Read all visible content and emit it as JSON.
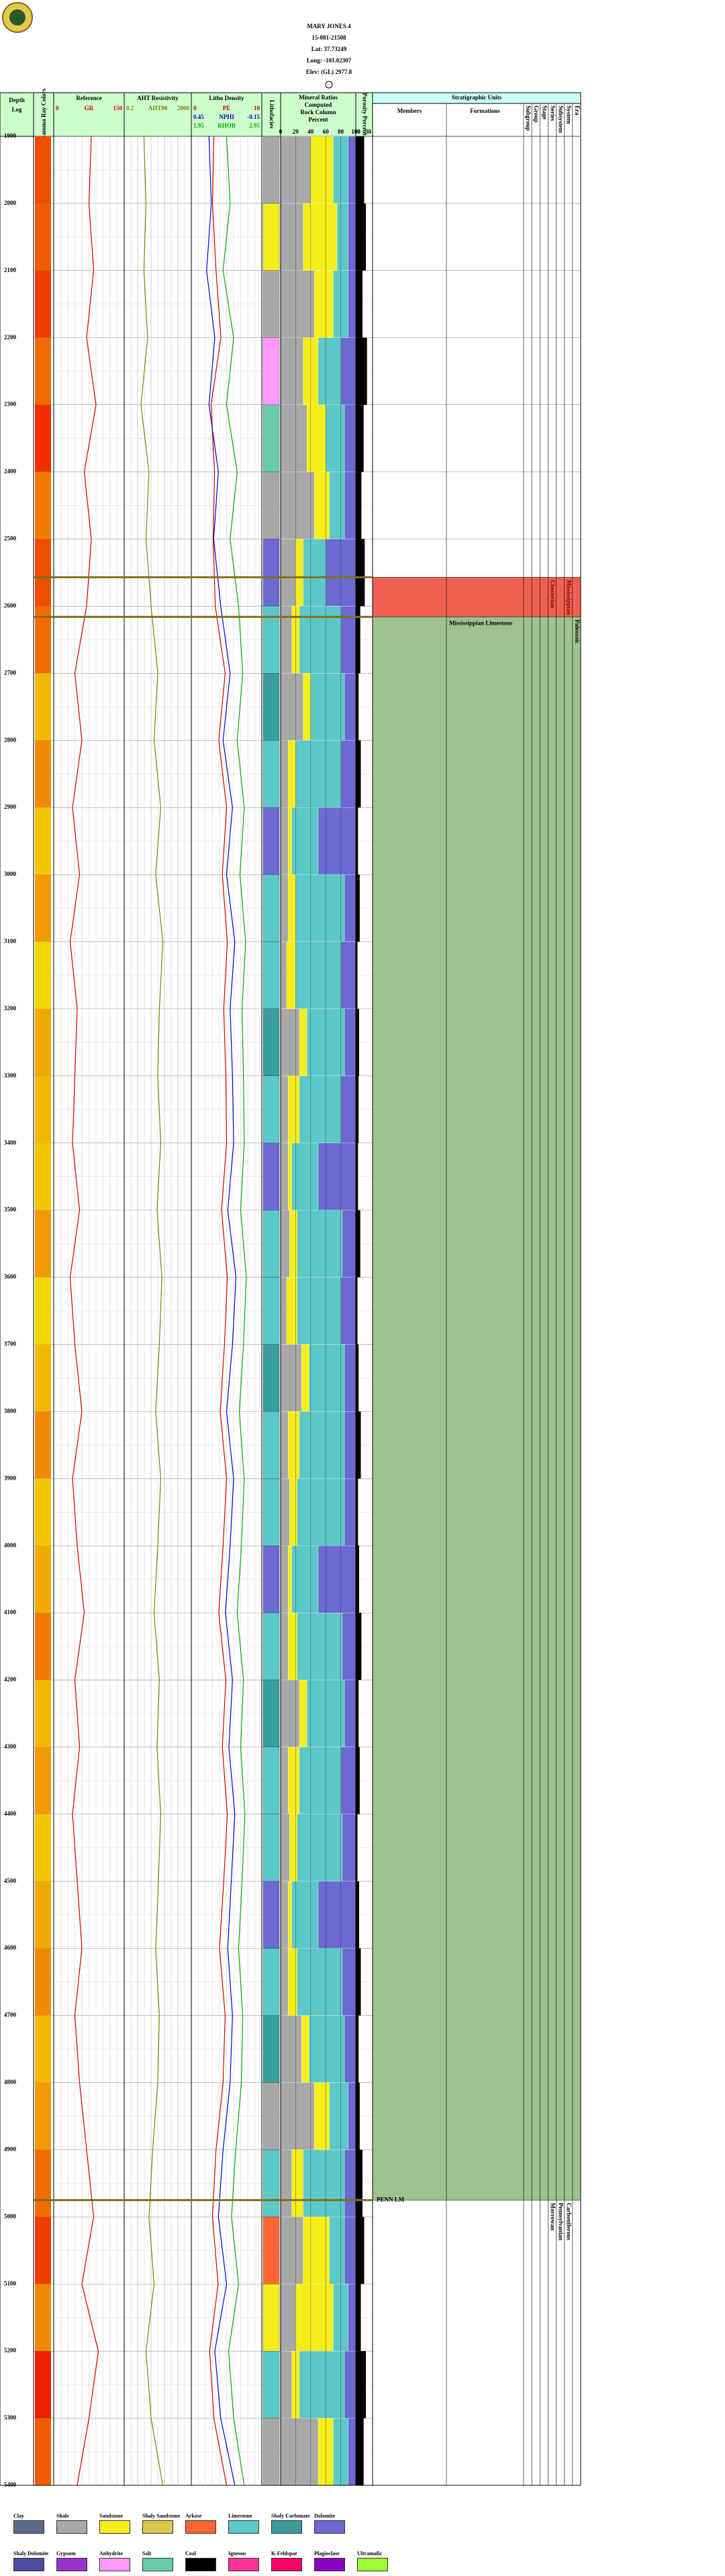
{
  "header": {
    "well": "MARY JONES 4",
    "api": "15-081-21508",
    "lat": "Lat: 37.73249",
    "long": "Long: -101.02307",
    "elev": "Elev: (GL) 2977.8"
  },
  "depth_header": [
    "Depth",
    "Log"
  ],
  "gamma_header": "Gamma Ray Colors",
  "lithofacies_header": "Lithofacies",
  "logs": {
    "depths": [
      1900,
      2000,
      2100,
      2200,
      2300,
      2400,
      2500,
      2600,
      2700,
      2800,
      2900,
      3000,
      3100,
      3200,
      3300,
      3400,
      3500,
      3600,
      3700,
      3800,
      3900,
      4000,
      4100,
      4200,
      4300,
      4400,
      4500,
      4600,
      4700,
      4800,
      4900,
      5000,
      5100,
      5200,
      5300,
      5400
    ],
    "tracks": [
      {
        "title": "Reference",
        "curves": [
          {
            "name": "GR",
            "color": "#cc0000",
            "lim": [
              0,
              150
            ],
            "values": [
              80,
              75,
              85,
              70,
              90,
              65,
              80,
              70,
              45,
              60,
              40,
              55,
              35,
              50,
              45,
              40,
              55,
              35,
              45,
              60,
              40,
              50,
              65,
              45,
              55,
              40,
              50,
              60,
              45,
              55,
              70,
              85,
              60,
              95,
              75,
              50
            ]
          }
        ]
      },
      {
        "title": "AHT Resistivity",
        "log": true,
        "curves": [
          {
            "name": "AHT90",
            "color": "#808000",
            "lim": [
              0.2,
              2000
            ],
            "values": [
              3,
              4,
              3,
              5,
              2,
              6,
              4,
              8,
              20,
              12,
              30,
              15,
              40,
              25,
              20,
              30,
              18,
              35,
              25,
              15,
              30,
              20,
              12,
              25,
              18,
              30,
              22,
              15,
              25,
              20,
              10,
              6,
              12,
              4,
              8,
              40
            ]
          }
        ]
      },
      {
        "title": "Litho Density",
        "curves": [
          {
            "name": "PE",
            "color": "#cc0000",
            "lim": [
              0,
              10
            ],
            "values": [
              3.2,
              3.0,
              3.5,
              4.2,
              2.8,
              3.3,
              3.1,
              3.4,
              4.8,
              3.9,
              5.0,
              4.4,
              5.1,
              4.6,
              4.9,
              5.0,
              4.3,
              5.1,
              4.7,
              4.1,
              5.0,
              4.5,
              3.9,
              4.9,
              4.4,
              5.1,
              4.6,
              4.0,
              4.8,
              4.5,
              3.5,
              3.0,
              3.8,
              2.6,
              3.2,
              5.0
            ]
          },
          {
            "name": "NPHI",
            "color": "#0000cc",
            "lim": [
              0.45,
              -0.15
            ],
            "values": [
              0.3,
              0.28,
              0.32,
              0.25,
              0.3,
              0.22,
              0.26,
              0.2,
              0.12,
              0.18,
              0.1,
              0.15,
              0.08,
              0.12,
              0.1,
              0.09,
              0.14,
              0.07,
              0.1,
              0.15,
              0.09,
              0.12,
              0.16,
              0.1,
              0.13,
              0.08,
              0.11,
              0.14,
              0.1,
              0.12,
              0.18,
              0.22,
              0.15,
              0.25,
              0.2,
              0.08
            ]
          },
          {
            "name": "RHOB",
            "color": "#00aa00",
            "lim": [
              1.95,
              2.95
            ],
            "values": [
              2.45,
              2.5,
              2.4,
              2.55,
              2.45,
              2.6,
              2.5,
              2.62,
              2.68,
              2.6,
              2.7,
              2.64,
              2.72,
              2.67,
              2.69,
              2.7,
              2.65,
              2.73,
              2.69,
              2.63,
              2.7,
              2.66,
              2.6,
              2.69,
              2.65,
              2.71,
              2.67,
              2.62,
              2.68,
              2.66,
              2.58,
              2.52,
              2.62,
              2.48,
              2.55,
              2.7
            ]
          }
        ]
      }
    ],
    "porosity": {
      "title": "Porosity Percent",
      "lim": [
        0,
        30
      ],
      "values": [
        15,
        18,
        12,
        20,
        14,
        10,
        16,
        8,
        5,
        9,
        4,
        7,
        3,
        6,
        5,
        4,
        8,
        3,
        5,
        9,
        4,
        6,
        10,
        5,
        7,
        3,
        6,
        9,
        5,
        7,
        12,
        15,
        9,
        18,
        14,
        4
      ]
    }
  },
  "lith": {
    "names": [
      "Shale",
      "Sandstone",
      "Shale",
      "Anhydrite",
      "Salt",
      "Shale",
      "Dolomite",
      "Limestone",
      "Shaly Carbonate",
      "Limestone",
      "Dolomite",
      "Limestone",
      "Limestone",
      "Shaly Carbonate",
      "Limestone",
      "Dolomite",
      "Limestone",
      "Limestone",
      "Shaly Carbonate",
      "Limestone",
      "Limestone",
      "Dolomite",
      "Limestone",
      "Shaly Carbonate",
      "Limestone",
      "Limestone",
      "Dolomite",
      "Limestone",
      "Shaly Carbonate",
      "Shale",
      "Limestone",
      "Arkose",
      "Sandstone",
      "Limestone",
      "Shale"
    ],
    "mix": [
      [
        40,
        30,
        20,
        10
      ],
      [
        30,
        45,
        15,
        10
      ],
      [
        45,
        25,
        20,
        10
      ],
      [
        30,
        20,
        30,
        20
      ],
      [
        35,
        25,
        25,
        15
      ],
      [
        45,
        20,
        20,
        15
      ],
      [
        20,
        10,
        30,
        40
      ],
      [
        15,
        10,
        55,
        20
      ],
      [
        30,
        10,
        45,
        15
      ],
      [
        10,
        10,
        60,
        20
      ],
      [
        10,
        5,
        35,
        50
      ],
      [
        10,
        10,
        65,
        15
      ],
      [
        8,
        12,
        60,
        20
      ],
      [
        25,
        10,
        50,
        15
      ],
      [
        10,
        15,
        55,
        20
      ],
      [
        10,
        5,
        35,
        50
      ],
      [
        12,
        10,
        60,
        18
      ],
      [
        8,
        14,
        58,
        20
      ],
      [
        28,
        10,
        47,
        15
      ],
      [
        10,
        15,
        60,
        15
      ],
      [
        12,
        10,
        63,
        15
      ],
      [
        10,
        5,
        35,
        50
      ],
      [
        10,
        12,
        60,
        18
      ],
      [
        25,
        10,
        50,
        15
      ],
      [
        10,
        15,
        55,
        20
      ],
      [
        12,
        10,
        60,
        18
      ],
      [
        10,
        5,
        35,
        50
      ],
      [
        10,
        12,
        60,
        18
      ],
      [
        28,
        10,
        47,
        15
      ],
      [
        45,
        20,
        25,
        10
      ],
      [
        15,
        15,
        55,
        15
      ],
      [
        30,
        35,
        20,
        15
      ],
      [
        20,
        50,
        20,
        10
      ],
      [
        15,
        10,
        60,
        15
      ],
      [
        50,
        20,
        20,
        10
      ]
    ]
  },
  "mineral": {
    "title": [
      "Mineral Ratios",
      "Computed",
      "Rock Column",
      "Percent"
    ],
    "ticks": [
      0,
      20,
      40,
      60,
      80,
      100
    ]
  },
  "markers": [
    {
      "depth": 2557
    },
    {
      "depth": 2616
    },
    {
      "depth": 4975,
      "label": "PENN LM"
    }
  ],
  "strat": {
    "title": "Stratigraphic Units",
    "columns": [
      "Members",
      "Formations",
      "Subgroup",
      "Group",
      "Stage",
      "Series",
      "Subsystem",
      "System",
      "Era"
    ],
    "units": [
      {
        "top": 2557,
        "base": 2616,
        "color": "#f06050",
        "labels": {
          "Series": "Chesterian",
          "System": "Mississippian"
        }
      },
      {
        "top": 2616,
        "base": 4975,
        "color": "#9dc38e",
        "labels": {
          "Formations": "Mississippian Limestone",
          "Era": "Paleozoic"
        }
      },
      {
        "top": 4975,
        "base": 5400,
        "color": "#ffffff",
        "labels": {
          "Series": "Morrowan",
          "Subsystem": "Pennsylvanian",
          "System": "Carboniferous"
        }
      }
    ]
  },
  "legend": [
    {
      "label": "Clay",
      "color": "#5c6a8a"
    },
    {
      "label": "Shale",
      "color": "#a8a8a8"
    },
    {
      "label": "Sandstone",
      "color": "#f5ee1a"
    },
    {
      "label": "Shaly Sandstone",
      "color": "#d8c84a"
    },
    {
      "label": "Arkose",
      "color": "#ff6633"
    },
    {
      "label": "Limestone",
      "color": "#5cc8c8"
    },
    {
      "label": "Shaly Carbonate",
      "color": "#3a9c9c"
    },
    {
      "label": "Dolomite",
      "color": "#6a6ad0"
    },
    {
      "label": "Shaly Dolomite",
      "color": "#4c4ca0"
    },
    {
      "label": "Gypsum",
      "color": "#9933cc"
    },
    {
      "label": "Anhydrite",
      "color": "#ff99ff"
    },
    {
      "label": "Salt",
      "color": "#66ccaa"
    },
    {
      "label": "Coal",
      "color": "#000000"
    },
    {
      "label": "Igneous",
      "color": "#ff3399"
    },
    {
      "label": "K-Feldspar",
      "color": "#ff0066"
    },
    {
      "label": "Plagioclase",
      "color": "#8a00c0"
    },
    {
      "label": "Ultramafic",
      "color": "#99ff33"
    }
  ]
}
